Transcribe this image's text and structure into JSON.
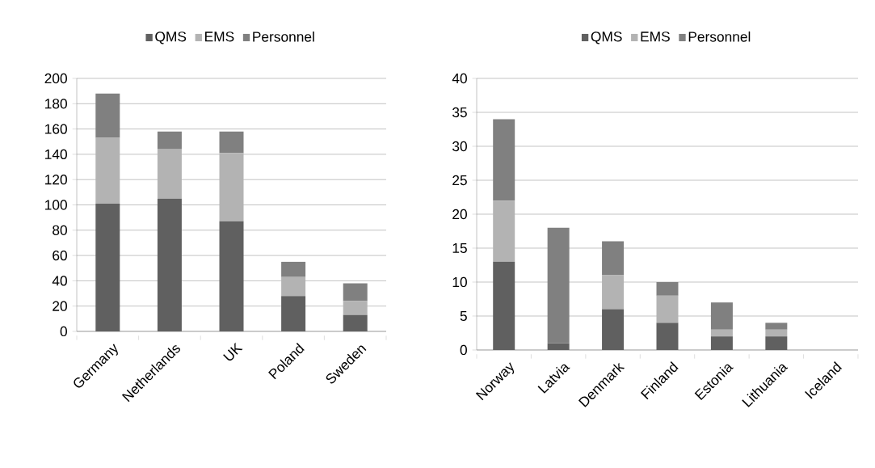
{
  "chart_data": [
    {
      "type": "bar",
      "stacked": true,
      "categories": [
        "Germany",
        "Netherlands",
        "UK",
        "Poland",
        "Sweden"
      ],
      "series": [
        {
          "name": "QMS",
          "color": "#606060",
          "values": [
            101,
            105,
            87,
            28,
            13
          ]
        },
        {
          "name": "EMS",
          "color": "#b3b3b3",
          "values": [
            52,
            39,
            54,
            15,
            11
          ]
        },
        {
          "name": "Personnel",
          "color": "#808080",
          "values": [
            35,
            14,
            17,
            12,
            14
          ]
        }
      ],
      "ylim": [
        0,
        200
      ],
      "yticks": [
        0,
        20,
        40,
        60,
        80,
        100,
        120,
        140,
        160,
        180,
        200
      ],
      "grid": "y",
      "legend": "top"
    },
    {
      "type": "bar",
      "stacked": true,
      "categories": [
        "Norway",
        "Latvia",
        "Denmark",
        "Finland",
        "Estonia",
        "Lithuania",
        "Iceland"
      ],
      "series": [
        {
          "name": "QMS",
          "color": "#606060",
          "values": [
            13,
            1,
            6,
            4,
            2,
            2,
            0
          ]
        },
        {
          "name": "EMS",
          "color": "#b3b3b3",
          "values": [
            9,
            0,
            5,
            4,
            1,
            1,
            0
          ]
        },
        {
          "name": "Personnel",
          "color": "#808080",
          "values": [
            12,
            17,
            5,
            2,
            4,
            1,
            0
          ]
        }
      ],
      "ylim": [
        0,
        40
      ],
      "yticks": [
        0,
        5,
        10,
        15,
        20,
        25,
        30,
        35,
        40
      ],
      "grid": "y",
      "legend": "top"
    }
  ]
}
